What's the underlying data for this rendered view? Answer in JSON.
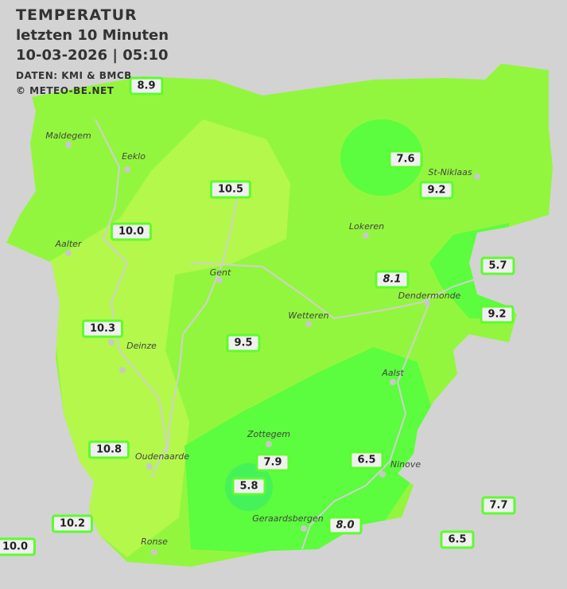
{
  "header": {
    "title": "TEMPERATUR",
    "subtitle": "letzten 10 Minuten",
    "datetime": "10-03-2026  |  05:10",
    "source": "DATEN: KMI & BMCB",
    "copyright": "© METEO-BE.NET"
  },
  "colors": {
    "background": "#d3d3d3",
    "zone_warm": "#b4f84c",
    "zone_mid": "#93f63e",
    "zone_cool": "#5cfc3e",
    "zone_coldest": "#45f25a",
    "label_border": "#5dfc2e"
  },
  "unit": "°C",
  "stations": [
    {
      "value": "8.9",
      "italic": false
    },
    {
      "value": "7.6",
      "italic": false
    },
    {
      "value": "10.5",
      "italic": false
    },
    {
      "value": "9.2",
      "italic": false
    },
    {
      "value": "10.0",
      "italic": false
    },
    {
      "value": "5.7",
      "italic": false
    },
    {
      "value": "8.1",
      "italic": true
    },
    {
      "value": "9.2",
      "italic": false
    },
    {
      "value": "10.3",
      "italic": false
    },
    {
      "value": "9.5",
      "italic": false
    },
    {
      "value": "10.8",
      "italic": false
    },
    {
      "value": "7.9",
      "italic": false
    },
    {
      "value": "6.5",
      "italic": false
    },
    {
      "value": "5.8",
      "italic": false
    },
    {
      "value": "7.7",
      "italic": false
    },
    {
      "value": "10.2",
      "italic": false
    },
    {
      "value": "8.0",
      "italic": true
    },
    {
      "value": "6.5",
      "italic": false
    },
    {
      "value": "10.0",
      "italic": false
    }
  ],
  "cities": [
    "Maldegem",
    "Eeklo",
    "St-Niklaas",
    "Lokeren",
    "Aalter",
    "Gent",
    "Dendermonde",
    "Wetteren",
    "Aalst",
    "Zottegem",
    "Oudenaarde",
    "Geraardsbergen",
    "Ronse",
    "Ninove",
    "Deinze"
  ]
}
